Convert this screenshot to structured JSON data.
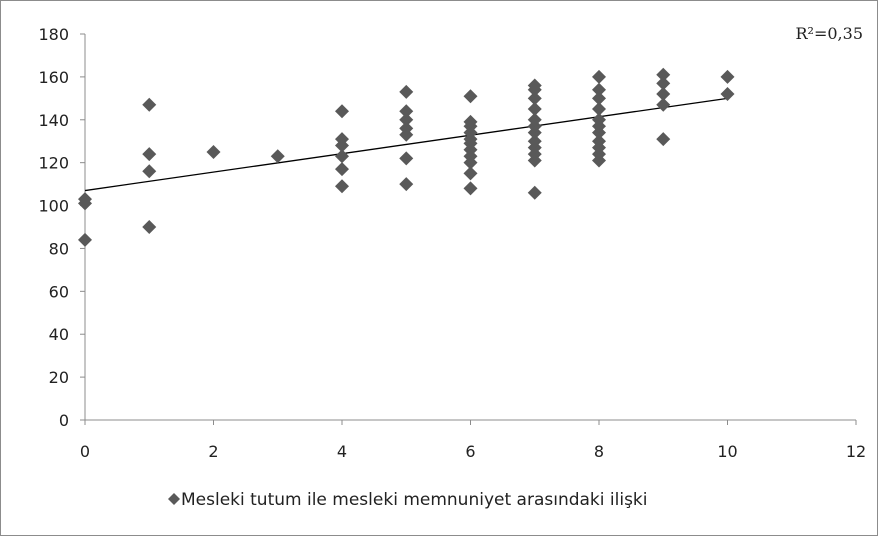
{
  "chart_data": {
    "type": "scatter",
    "title": "",
    "xlabel": "",
    "ylabel": "",
    "xlim": [
      0,
      12
    ],
    "ylim": [
      0,
      180
    ],
    "x_ticks": [
      0,
      2,
      4,
      6,
      8,
      10,
      12
    ],
    "y_ticks": [
      0,
      20,
      40,
      60,
      80,
      100,
      120,
      140,
      160,
      180
    ],
    "grid": false,
    "legend_position": "bottom",
    "annotation": "R²=0,35",
    "series": [
      {
        "name": "Mesleki tutum ile mesleki memnuniyet arasındaki ilişki",
        "marker": "diamond",
        "color": "#595959",
        "points": [
          [
            0,
            84
          ],
          [
            0,
            101
          ],
          [
            0,
            103
          ],
          [
            1,
            90
          ],
          [
            1,
            116
          ],
          [
            1,
            124
          ],
          [
            1,
            147
          ],
          [
            2,
            125
          ],
          [
            3,
            123
          ],
          [
            4,
            109
          ],
          [
            4,
            117
          ],
          [
            4,
            123
          ],
          [
            4,
            128
          ],
          [
            4,
            131
          ],
          [
            4,
            144
          ],
          [
            5,
            110
          ],
          [
            5,
            122
          ],
          [
            5,
            133
          ],
          [
            5,
            136
          ],
          [
            5,
            140
          ],
          [
            5,
            144
          ],
          [
            5,
            153
          ],
          [
            6,
            108
          ],
          [
            6,
            115
          ],
          [
            6,
            120
          ],
          [
            6,
            123
          ],
          [
            6,
            126
          ],
          [
            6,
            129
          ],
          [
            6,
            131
          ],
          [
            6,
            134
          ],
          [
            6,
            137
          ],
          [
            6,
            139
          ],
          [
            6,
            151
          ],
          [
            7,
            106
          ],
          [
            7,
            121
          ],
          [
            7,
            124
          ],
          [
            7,
            127
          ],
          [
            7,
            130
          ],
          [
            7,
            134
          ],
          [
            7,
            137
          ],
          [
            7,
            140
          ],
          [
            7,
            145
          ],
          [
            7,
            150
          ],
          [
            7,
            154
          ],
          [
            7,
            156
          ],
          [
            8,
            121
          ],
          [
            8,
            124
          ],
          [
            8,
            127
          ],
          [
            8,
            130
          ],
          [
            8,
            134
          ],
          [
            8,
            137
          ],
          [
            8,
            140
          ],
          [
            8,
            145
          ],
          [
            8,
            150
          ],
          [
            8,
            154
          ],
          [
            8,
            160
          ],
          [
            9,
            131
          ],
          [
            9,
            147
          ],
          [
            9,
            152
          ],
          [
            9,
            157
          ],
          [
            9,
            161
          ],
          [
            10,
            152
          ],
          [
            10,
            160
          ]
        ]
      }
    ],
    "trendline": {
      "type": "linear",
      "x": [
        0,
        10
      ],
      "y": [
        107,
        150
      ],
      "color": "#000000"
    }
  }
}
